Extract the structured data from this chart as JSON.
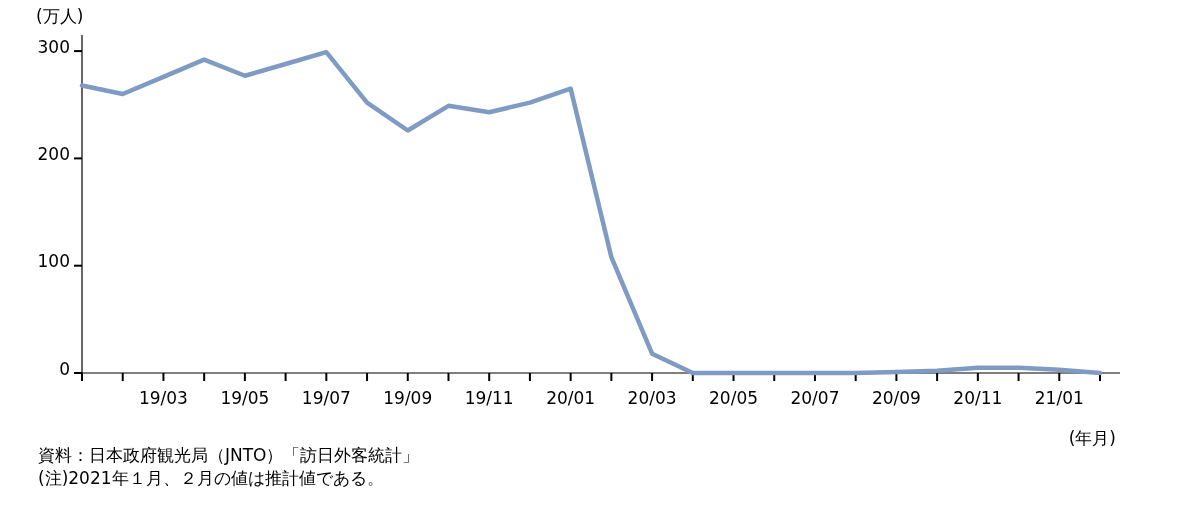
{
  "chart_data": {
    "type": "line",
    "ylabel": "(万人)",
    "xlabel": "(年月)",
    "categories": [
      null,
      null,
      "19/03",
      null,
      "19/05",
      null,
      "19/07",
      null,
      "19/09",
      null,
      "19/11",
      null,
      "20/01",
      null,
      "20/03",
      null,
      "20/05",
      null,
      "20/07",
      null,
      "20/09",
      null,
      "20/11",
      null,
      "21/01",
      null
    ],
    "series": [
      {
        "color": "#7f9bc3",
        "values": [
          268,
          260,
          276,
          292,
          277,
          288,
          299,
          252,
          226,
          249,
          243,
          252,
          265,
          108,
          18,
          0,
          0,
          0,
          0,
          0,
          1,
          2,
          5,
          5,
          3,
          0
        ]
      }
    ],
    "ylim": [
      0,
      315
    ],
    "yticks": [
      0,
      100,
      200,
      300
    ],
    "grid": false,
    "marker": "none",
    "line_style": "solid",
    "annotations": [
      "資料：日本政府観光局（JNTO）「訪日外客統計」",
      "(注)2021年１月、２月の値は推計値である。"
    ]
  }
}
